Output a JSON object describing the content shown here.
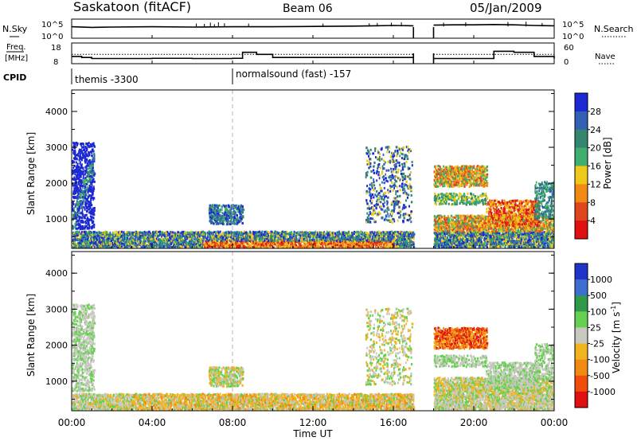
{
  "header": {
    "site": "Saskatoon (fitACF)",
    "beam": "Beam 06",
    "date": "05/Jan/2009"
  },
  "noise_panel": {
    "left_label": "N.Sky",
    "right_label": "N.Search",
    "left_ticks": [
      "10^5",
      "10^0"
    ],
    "right_ticks": [
      "10^5",
      "10^0"
    ]
  },
  "freq_panel": {
    "left_label": "Freq.",
    "left_unit": "[MHz]",
    "right_label": "Nave",
    "left_ticks": [
      "18",
      "8"
    ],
    "right_ticks": [
      "60",
      "0"
    ]
  },
  "cpid": {
    "label": "CPID",
    "modes": [
      {
        "name": "themis -3300",
        "start": "00:00"
      },
      {
        "name": "normalsound (fast) -157",
        "start": "08:00"
      }
    ]
  },
  "x_axis": {
    "label": "Time UT",
    "ticks": [
      "00:00",
      "04:00",
      "08:00",
      "12:00",
      "16:00",
      "20:00",
      "00:00"
    ]
  },
  "colors": {
    "power_scale": [
      "#1c28d2",
      "#3160b5",
      "#33876e",
      "#3fae6e",
      "#f0c81a",
      "#f08a14",
      "#e0461e",
      "#e01010"
    ],
    "velocity_scale": [
      "#2035c8",
      "#3d6fd0",
      "#2e9a4a",
      "#66d050",
      "#c8c8c0",
      "#f0b420",
      "#f08a10",
      "#f04c0a",
      "#e01010"
    ]
  },
  "chart_data": [
    {
      "type": "line",
      "title": "N.Sky / N.Search",
      "x_unit": "hours UT",
      "xlim": [
        0,
        24
      ],
      "series": [
        {
          "name": "N.Sky",
          "x": [
            0,
            1,
            2,
            4,
            6,
            8,
            10,
            12,
            14,
            15,
            16,
            17
          ],
          "y": [
            3.6,
            3.4,
            3.5,
            3.6,
            3.5,
            3.6,
            3.6,
            3.7,
            3.8,
            3.9,
            4.0,
            3.9
          ]
        },
        {
          "name": "N.Sky",
          "x": [
            18,
            19,
            20,
            21,
            22,
            23,
            24
          ],
          "y": [
            4.1,
            4.2,
            4.2,
            4.3,
            4.2,
            4.0,
            3.9
          ]
        }
      ]
    },
    {
      "type": "line",
      "title": "Freq. / Nave",
      "x_unit": "hours UT",
      "xlim": [
        0,
        24
      ],
      "series": [
        {
          "name": "Freq.",
          "x": [
            0,
            0.5,
            1,
            4,
            6,
            8,
            8.5,
            9.2,
            10,
            14,
            17
          ],
          "y": [
            11.5,
            11.0,
            10.5,
            10.6,
            10.5,
            10.6,
            13.5,
            12.5,
            11.0,
            11.0,
            11.0
          ]
        },
        {
          "name": "Freq.",
          "x": [
            18,
            20.5,
            21,
            22,
            23,
            24
          ],
          "y": [
            10.5,
            10.5,
            14,
            13.5,
            11.5,
            10.5
          ]
        },
        {
          "name": "Nave",
          "x": [
            0,
            17
          ],
          "y": [
            27,
            27
          ]
        },
        {
          "name": "Nave",
          "x": [
            18,
            24
          ],
          "y": [
            27,
            27
          ]
        }
      ]
    },
    {
      "type": "heatmap",
      "title": "Power",
      "ylabel": "Slant Range [km]",
      "colorbar_label": "Power [dB]",
      "colorbar_ticks": [
        "28",
        "24",
        "20",
        "16",
        "12",
        "8",
        "4"
      ],
      "y_ticks": [
        "4000",
        "3000",
        "2000",
        "1000"
      ],
      "ylim": [
        180,
        4600
      ],
      "xlim": [
        0,
        24
      ]
    },
    {
      "type": "heatmap",
      "title": "Velocity",
      "ylabel": "Slant Range [km]",
      "colorbar_label": "Velocity [m s^-1]",
      "colorbar_ticks": [
        "1000",
        "500",
        "100",
        "25",
        "-25",
        "-100",
        "-500",
        "-1000"
      ],
      "y_ticks": [
        "4000",
        "3000",
        "2000",
        "1000"
      ],
      "ylim": [
        180,
        4600
      ],
      "xlim": [
        0,
        24
      ]
    }
  ]
}
